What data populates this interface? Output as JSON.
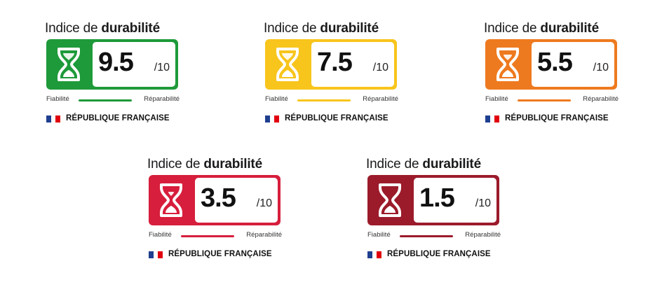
{
  "labels": [
    {
      "title_prefix": "Indice de",
      "title_bold": "durabilité",
      "score": "9.5",
      "scale": "/10",
      "color": "#1e9a3a",
      "left_label": "Fiabilité",
      "right_label": "Réparabilité",
      "footer": "RÉPUBLIQUE FRANÇAISE"
    },
    {
      "title_prefix": "Indice de",
      "title_bold": "durabilité",
      "score": "7.5",
      "scale": "/10",
      "color": "#f8c51c",
      "left_label": "Fiabilité",
      "right_label": "Réparabilité",
      "footer": "RÉPUBLIQUE FRANÇAISE"
    },
    {
      "title_prefix": "Indice de",
      "title_bold": "durabilité",
      "score": "5.5",
      "scale": "/10",
      "color": "#ee7a1f",
      "left_label": "Fiabilité",
      "right_label": "Réparabilité",
      "footer": "RÉPUBLIQUE FRANÇAISE"
    },
    {
      "title_prefix": "Indice de",
      "title_bold": "durabilité",
      "score": "3.5",
      "scale": "/10",
      "color": "#d71e3c",
      "left_label": "Fiabilité",
      "right_label": "Réparabilité",
      "footer": "RÉPUBLIQUE FRANÇAISE"
    },
    {
      "title_prefix": "Indice de",
      "title_bold": "durabilité",
      "score": "1.5",
      "scale": "/10",
      "color": "#9b1b2b",
      "left_label": "Fiabilité",
      "right_label": "Réparabilité",
      "footer": "RÉPUBLIQUE FRANÇAISE"
    }
  ],
  "flag_colors": {
    "blue": "#1f3f8f",
    "white": "#ffffff",
    "red": "#e1000f"
  }
}
